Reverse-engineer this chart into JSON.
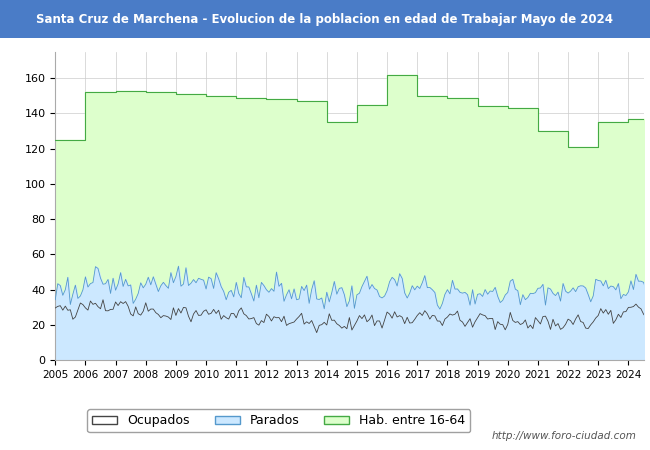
{
  "title": "Santa Cruz de Marchena - Evolucion de la poblacion en edad de Trabajar Mayo de 2024",
  "title_bg": "#4A7CC7",
  "title_color": "#FFFFFF",
  "ylim": [
    0,
    175
  ],
  "yticks": [
    0,
    20,
    40,
    60,
    80,
    100,
    120,
    140,
    160
  ],
  "years": [
    2005,
    2006,
    2007,
    2008,
    2009,
    2010,
    2011,
    2012,
    2013,
    2014,
    2015,
    2016,
    2017,
    2018,
    2019,
    2020,
    2021,
    2022,
    2023,
    2024
  ],
  "hab_annual": [
    125,
    152,
    153,
    152,
    151,
    150,
    149,
    148,
    147,
    135,
    145,
    162,
    150,
    149,
    144,
    143,
    130,
    121,
    135,
    137
  ],
  "parados_base": [
    38,
    42,
    44,
    43,
    44,
    43,
    40,
    41,
    38,
    37,
    38,
    42,
    40,
    38,
    37,
    38,
    40,
    38,
    42,
    43
  ],
  "ocupados_base": [
    28,
    30,
    30,
    29,
    27,
    26,
    25,
    24,
    22,
    21,
    22,
    24,
    25,
    24,
    23,
    22,
    21,
    20,
    24,
    27
  ],
  "color_hab_fill": "#DDFFCC",
  "color_hab_line": "#44AA44",
  "color_parados_fill": "#CCE8FF",
  "color_parados_line": "#5599CC",
  "color_ocupados_line": "#444444",
  "watermark": "http://www.foro-ciudad.com",
  "legend_labels": [
    "Ocupados",
    "Parados",
    "Hab. entre 16-64"
  ],
  "legend_colors_fill": [
    "#FFFFFF",
    "#CCE8FF",
    "#DDFFCC"
  ],
  "legend_colors_edge": [
    "#444444",
    "#5599CC",
    "#44AA44"
  ]
}
